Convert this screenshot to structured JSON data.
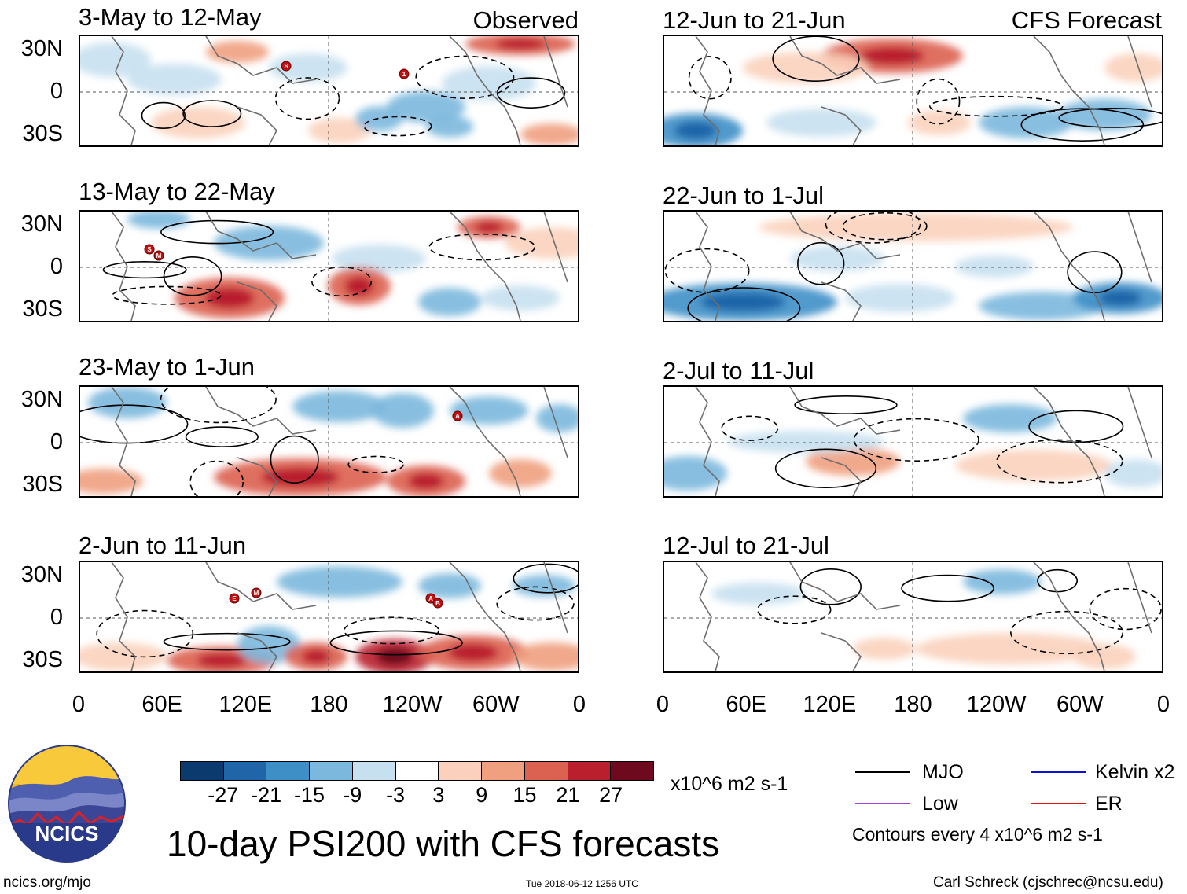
{
  "left_label": "Observed",
  "right_label": "CFS Forecast",
  "observed_panels": [
    {
      "title": "3-May to 12-May"
    },
    {
      "title": "13-May to 22-May"
    },
    {
      "title": "23-May to 1-Jun"
    },
    {
      "title": "2-Jun to 11-Jun"
    }
  ],
  "forecast_panels": [
    {
      "title": "12-Jun to 21-Jun"
    },
    {
      "title": "22-Jun to 1-Jul"
    },
    {
      "title": "2-Jul to 11-Jul"
    },
    {
      "title": "12-Jul to 21-Jul"
    }
  ],
  "y_ticks": [
    "30N",
    "0",
    "30S"
  ],
  "x_ticks": [
    "0",
    "60E",
    "120E",
    "180",
    "120W",
    "60W",
    "0"
  ],
  "storm_markers": [
    {
      "panel": 0,
      "letter": "S"
    },
    {
      "panel": 0,
      "letter": "1"
    },
    {
      "panel": 1,
      "letter": "S"
    },
    {
      "panel": 1,
      "letter": "M"
    },
    {
      "panel": 2,
      "letter": "A"
    },
    {
      "panel": 3,
      "letter": "E"
    },
    {
      "panel": 3,
      "letter": "M"
    },
    {
      "panel": 3,
      "letter": "A"
    },
    {
      "panel": 3,
      "letter": "B"
    }
  ],
  "colorbar": {
    "ticks": [
      "-27",
      "-21",
      "-15",
      "-9",
      "-3",
      "3",
      "9",
      "15",
      "21",
      "27"
    ],
    "colors": [
      "#0a3a6e",
      "#1f65a8",
      "#3d8fc6",
      "#7cb8dd",
      "#c6e0ef",
      "#ffffff",
      "#fbd1bd",
      "#f0a07f",
      "#db6150",
      "#b91f2d",
      "#6d0a1e"
    ],
    "units": "x10^6 m2 s-1"
  },
  "legend": {
    "mjo": {
      "label": "MJO",
      "color": "#000000"
    },
    "kelvin": {
      "label": "Kelvin x2",
      "color": "#1010d0"
    },
    "low": {
      "label": "Low",
      "color": "#a040e0"
    },
    "er": {
      "label": "ER",
      "color": "#e01010"
    },
    "contours": "Contours every 4 x10^6 m2 s-1"
  },
  "logo": {
    "text": "NCICS"
  },
  "main_title": "10-day PSI200 with CFS forecasts",
  "url": "ncics.org/mjo",
  "timestamp": "Tue 2018-06-12 1256 UTC",
  "credit": "Carl Schreck (cjschrec@ncsu.edu)"
}
